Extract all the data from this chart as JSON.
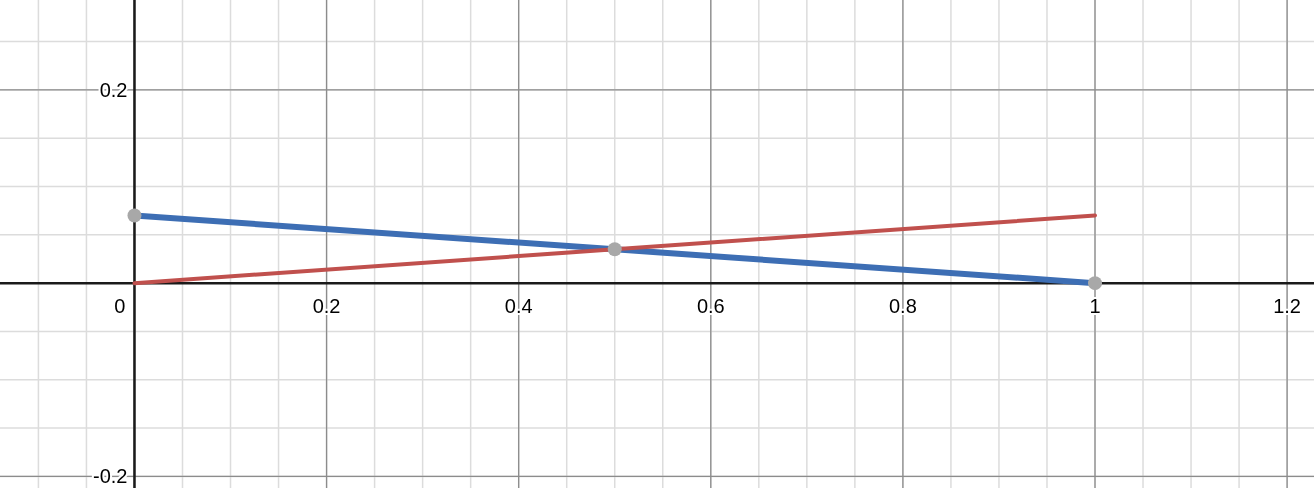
{
  "chart_data": {
    "type": "line",
    "x": [
      0,
      0.5,
      1
    ],
    "series": [
      {
        "color": "#3d6eb4",
        "values": [
          0.07,
          0.035,
          0
        ],
        "marker": "none"
      },
      {
        "color": "#c0504d",
        "values": [
          0,
          0.035,
          0.07
        ],
        "marker": "none"
      },
      {
        "type": "scatter",
        "color": "#a8a8a8",
        "values": [
          0.07,
          0.035,
          0
        ],
        "marker": "circle"
      }
    ],
    "xlim": [
      -0.14,
      1.228
    ],
    "ylim": [
      -0.212,
      0.293
    ],
    "xticks": [
      0,
      0.2,
      0.4,
      0.6,
      0.8,
      1,
      1.2
    ],
    "yticks": [
      -0.2,
      0.2
    ],
    "grid": true
  }
}
